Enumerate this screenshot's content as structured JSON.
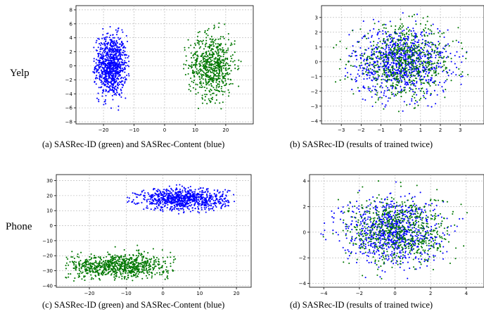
{
  "row_labels": [
    "Yelp",
    "Phone"
  ],
  "chart_data": [
    {
      "type": "scatter",
      "id": "a",
      "caption": "(a) SASRec-ID (green) and SASRec-Content (blue)",
      "xlim": [
        -29,
        29
      ],
      "ylim": [
        -8.3,
        8.6
      ],
      "xticks": [
        -20,
        -10,
        0,
        10,
        20
      ],
      "yticks": [
        -8,
        -6,
        -4,
        -2,
        0,
        2,
        4,
        6,
        8
      ],
      "grid": true,
      "series": [
        {
          "color": "#0000ff",
          "cluster": {
            "cx": -17.5,
            "cy": 0,
            "sx": 2.6,
            "sy": 2.2,
            "n": 900,
            "shape": "ellipse",
            "rx": 6,
            "ry": 7.9
          }
        },
        {
          "color": "#007700",
          "cluster": {
            "cx": 15.5,
            "cy": 0,
            "sx": 3.8,
            "sy": 2.3,
            "n": 650,
            "shape": "ellipse",
            "rx": 10,
            "ry": 6.8
          }
        }
      ]
    },
    {
      "type": "scatter",
      "id": "b",
      "caption": "(b) SASRec-ID (results of trained twice)",
      "xlim": [
        -4,
        4.2
      ],
      "ylim": [
        -4.2,
        3.8
      ],
      "xticks": [
        -3,
        -2,
        -1,
        0,
        1,
        2,
        3
      ],
      "yticks": [
        -4,
        -3,
        -2,
        -1,
        0,
        1,
        2,
        3
      ],
      "grid": true,
      "series": [
        {
          "color": "#0000ff",
          "cluster": {
            "cx": 0,
            "cy": 0,
            "sx": 1.2,
            "sy": 1.15,
            "n": 900,
            "shape": "ellipse",
            "rx": 3.6,
            "ry": 3.4
          }
        },
        {
          "color": "#007700",
          "cluster": {
            "cx": 0.2,
            "cy": 0,
            "sx": 1.3,
            "sy": 1.2,
            "n": 650,
            "shape": "ellipse",
            "rx": 3.8,
            "ry": 3.5
          }
        }
      ]
    },
    {
      "type": "scatter",
      "id": "c",
      "caption": "(c) SASRec-ID (green) and SASRec-Content (blue)",
      "xlim": [
        -29,
        24
      ],
      "ylim": [
        -41,
        34
      ],
      "xticks": [
        -20,
        -10,
        0,
        10,
        20
      ],
      "yticks": [
        -40,
        -30,
        -20,
        -10,
        0,
        10,
        20,
        30
      ],
      "grid": true,
      "series": [
        {
          "color": "#0000ff",
          "cluster": {
            "cx": 5.5,
            "cy": 17.5,
            "sx": 6,
            "sy": 3.6,
            "n": 850,
            "shape": "ellipse",
            "rx": 15.5,
            "ry": 10
          }
        },
        {
          "color": "#007700",
          "cluster": {
            "cx": -12,
            "cy": -27,
            "sx": 7,
            "sy": 4.2,
            "n": 800,
            "shape": "box",
            "x0": -27,
            "x1": 3.5,
            "y0": -37,
            "y1": -13
          }
        }
      ]
    },
    {
      "type": "scatter",
      "id": "d",
      "caption": "(d) SASRec-ID (results of trained twice)",
      "xlim": [
        -4.8,
        5
      ],
      "ylim": [
        -4.3,
        4.5
      ],
      "xticks": [
        -4,
        -2,
        0,
        2,
        4
      ],
      "yticks": [
        -4,
        -2,
        0,
        2,
        4
      ],
      "grid": true,
      "series": [
        {
          "color": "#0000ff",
          "cluster": {
            "cx": -0.2,
            "cy": 0.1,
            "sx": 1.35,
            "sy": 1.3,
            "n": 850,
            "shape": "ellipse",
            "rx": 4.3,
            "ry": 4.0
          }
        },
        {
          "color": "#007700",
          "cluster": {
            "cx": 0.3,
            "cy": 0.1,
            "sx": 1.45,
            "sy": 1.35,
            "n": 650,
            "shape": "ellipse",
            "rx": 4.5,
            "ry": 4.2
          }
        }
      ]
    }
  ]
}
